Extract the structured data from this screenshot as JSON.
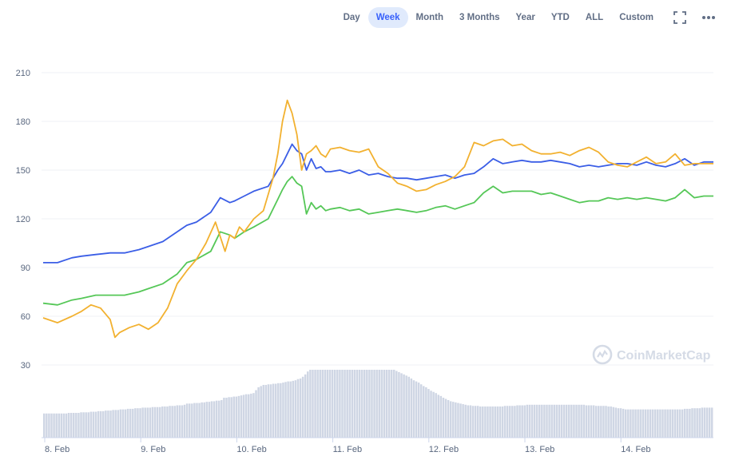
{
  "toolbar": {
    "ranges": [
      "Day",
      "Week",
      "Month",
      "3 Months",
      "Year",
      "YTD",
      "ALL",
      "Custom"
    ],
    "active": "Week",
    "icons": [
      "fullscreen-icon",
      "more-icon"
    ]
  },
  "watermark": "CoinMarketCap",
  "colors": {
    "blue": "#3b5ee6",
    "green": "#55c757",
    "orange": "#f2b130",
    "volume": "#cfd6e4",
    "grid": "#eff2f5",
    "axis_text": "#58667e",
    "accent": "#3861fb"
  },
  "chart_data": {
    "type": "line",
    "title": "",
    "xlabel": "",
    "ylabel": "",
    "x_ticks": [
      "8. Feb",
      "9. Feb",
      "10. Feb",
      "11. Feb",
      "12. Feb",
      "13. Feb",
      "14. Feb"
    ],
    "y_ticks": [
      30,
      60,
      90,
      120,
      150,
      180,
      210
    ],
    "ylim": [
      15,
      215
    ],
    "xlim": [
      0,
      7
    ],
    "grid": true,
    "legend": "none",
    "series": [
      {
        "color": "#3b5ee6",
        "x": [
          0,
          0.15,
          0.3,
          0.4,
          0.55,
          0.7,
          0.85,
          1.0,
          1.1,
          1.25,
          1.4,
          1.5,
          1.6,
          1.75,
          1.85,
          1.95,
          2.0,
          2.1,
          2.2,
          2.35,
          2.45,
          2.5,
          2.55,
          2.6,
          2.65,
          2.7,
          2.75,
          2.8,
          2.85,
          2.9,
          2.95,
          3.0,
          3.1,
          3.2,
          3.3,
          3.4,
          3.5,
          3.6,
          3.7,
          3.8,
          3.9,
          4.0,
          4.1,
          4.2,
          4.3,
          4.4,
          4.5,
          4.6,
          4.7,
          4.8,
          4.9,
          5.0,
          5.1,
          5.2,
          5.3,
          5.4,
          5.5,
          5.6,
          5.7,
          5.8,
          5.9,
          6.0,
          6.1,
          6.2,
          6.3,
          6.4,
          6.5,
          6.6,
          6.7,
          6.8,
          6.9,
          7.0
        ],
        "y": [
          93,
          93,
          96,
          97,
          98,
          99,
          99,
          101,
          103,
          106,
          112,
          116,
          118,
          124,
          133,
          130,
          131,
          134,
          137,
          140,
          150,
          154,
          160,
          166,
          162,
          160,
          150,
          157,
          151,
          152,
          149,
          149,
          150,
          148,
          150,
          147,
          148,
          146,
          145,
          145,
          144,
          145,
          146,
          147,
          145,
          147,
          148,
          152,
          157,
          154,
          155,
          156,
          155,
          155,
          156,
          155,
          154,
          152,
          153,
          152,
          153,
          154,
          154,
          153,
          155,
          153,
          152,
          154,
          157,
          153,
          155,
          155
        ]
      },
      {
        "color": "#55c757",
        "x": [
          0,
          0.15,
          0.3,
          0.4,
          0.55,
          0.7,
          0.85,
          1.0,
          1.1,
          1.25,
          1.4,
          1.5,
          1.6,
          1.75,
          1.85,
          1.95,
          2.0,
          2.1,
          2.2,
          2.35,
          2.45,
          2.5,
          2.55,
          2.6,
          2.65,
          2.7,
          2.75,
          2.8,
          2.85,
          2.9,
          2.95,
          3.0,
          3.1,
          3.2,
          3.3,
          3.4,
          3.5,
          3.6,
          3.7,
          3.8,
          3.9,
          4.0,
          4.1,
          4.2,
          4.3,
          4.4,
          4.5,
          4.6,
          4.7,
          4.8,
          4.9,
          5.0,
          5.1,
          5.2,
          5.3,
          5.4,
          5.5,
          5.6,
          5.7,
          5.8,
          5.9,
          6.0,
          6.1,
          6.2,
          6.3,
          6.4,
          6.5,
          6.6,
          6.7,
          6.8,
          6.9,
          7.0
        ],
        "y": [
          68,
          67,
          70,
          71,
          73,
          73,
          73,
          75,
          77,
          80,
          86,
          93,
          95,
          100,
          112,
          110,
          108,
          112,
          115,
          120,
          132,
          138,
          143,
          146,
          142,
          140,
          123,
          130,
          126,
          128,
          125,
          126,
          127,
          125,
          126,
          123,
          124,
          125,
          126,
          125,
          124,
          125,
          127,
          128,
          126,
          128,
          130,
          136,
          140,
          136,
          137,
          137,
          137,
          135,
          136,
          134,
          132,
          130,
          131,
          131,
          133,
          132,
          133,
          132,
          133,
          132,
          131,
          133,
          138,
          133,
          134,
          134
        ]
      },
      {
        "color": "#f2b130",
        "x": [
          0,
          0.15,
          0.3,
          0.4,
          0.5,
          0.6,
          0.7,
          0.75,
          0.8,
          0.9,
          1.0,
          1.1,
          1.2,
          1.3,
          1.4,
          1.5,
          1.6,
          1.7,
          1.8,
          1.9,
          1.95,
          2.0,
          2.05,
          2.1,
          2.2,
          2.3,
          2.4,
          2.45,
          2.5,
          2.55,
          2.6,
          2.65,
          2.7,
          2.75,
          2.8,
          2.85,
          2.9,
          2.95,
          3.0,
          3.1,
          3.2,
          3.3,
          3.4,
          3.5,
          3.6,
          3.7,
          3.8,
          3.9,
          4.0,
          4.1,
          4.2,
          4.3,
          4.4,
          4.5,
          4.6,
          4.7,
          4.8,
          4.9,
          5.0,
          5.1,
          5.2,
          5.3,
          5.4,
          5.5,
          5.6,
          5.7,
          5.8,
          5.9,
          6.0,
          6.1,
          6.2,
          6.3,
          6.4,
          6.5,
          6.6,
          6.7,
          6.8,
          6.9,
          7.0
        ],
        "y": [
          59,
          56,
          60,
          63,
          67,
          65,
          58,
          47,
          50,
          53,
          55,
          52,
          56,
          65,
          80,
          88,
          95,
          105,
          118,
          100,
          110,
          108,
          115,
          112,
          120,
          125,
          145,
          160,
          180,
          193,
          185,
          172,
          150,
          160,
          162,
          165,
          160,
          158,
          163,
          164,
          162,
          161,
          163,
          152,
          148,
          142,
          140,
          137,
          138,
          141,
          143,
          146,
          152,
          167,
          165,
          168,
          169,
          165,
          166,
          162,
          160,
          160,
          161,
          159,
          162,
          164,
          161,
          155,
          153,
          152,
          155,
          158,
          154,
          155,
          160,
          153,
          154,
          154,
          154
        ]
      }
    ],
    "volume": {
      "x_step": 0.028,
      "values": [
        0.25,
        0.25,
        0.25,
        0.25,
        0.25,
        0.25,
        0.25,
        0.25,
        0.25,
        0.25,
        0.26,
        0.26,
        0.26,
        0.26,
        0.26,
        0.27,
        0.27,
        0.27,
        0.27,
        0.28,
        0.28,
        0.28,
        0.29,
        0.29,
        0.29,
        0.3,
        0.3,
        0.3,
        0.31,
        0.31,
        0.31,
        0.32,
        0.32,
        0.32,
        0.33,
        0.33,
        0.33,
        0.34,
        0.34,
        0.34,
        0.35,
        0.35,
        0.35,
        0.35,
        0.36,
        0.36,
        0.36,
        0.36,
        0.37,
        0.37,
        0.37,
        0.38,
        0.38,
        0.38,
        0.39,
        0.39,
        0.39,
        0.4,
        0.42,
        0.42,
        0.42,
        0.43,
        0.43,
        0.43,
        0.44,
        0.44,
        0.45,
        0.45,
        0.46,
        0.46,
        0.47,
        0.47,
        0.48,
        0.52,
        0.52,
        0.53,
        0.53,
        0.54,
        0.54,
        0.55,
        0.56,
        0.57,
        0.58,
        0.58,
        0.59,
        0.6,
        0.65,
        0.7,
        0.72,
        0.74,
        0.74,
        0.75,
        0.75,
        0.76,
        0.76,
        0.77,
        0.77,
        0.78,
        0.79,
        0.8,
        0.8,
        0.81,
        0.82,
        0.84,
        0.85,
        0.88,
        0.92,
        0.97,
        1.0,
        1.0,
        1.0,
        1.0,
        1.0,
        1.0,
        1.0,
        1.0,
        1.0,
        1.0,
        1.0,
        1.0,
        1.0,
        1.0,
        1.0,
        1.0,
        1.0,
        1.0,
        1.0,
        1.0,
        1.0,
        1.0,
        1.0,
        1.0,
        1.0,
        1.0,
        1.0,
        1.0,
        1.0,
        1.0,
        1.0,
        1.0,
        1.0,
        1.0,
        1.0,
        0.98,
        0.96,
        0.94,
        0.92,
        0.9,
        0.88,
        0.85,
        0.82,
        0.8,
        0.78,
        0.75,
        0.72,
        0.7,
        0.67,
        0.64,
        0.62,
        0.6,
        0.57,
        0.55,
        0.52,
        0.5,
        0.48,
        0.46,
        0.45,
        0.44,
        0.43,
        0.42,
        0.41,
        0.4,
        0.39,
        0.39,
        0.38,
        0.38,
        0.38,
        0.37,
        0.37,
        0.37,
        0.37,
        0.37,
        0.37,
        0.37,
        0.37,
        0.37,
        0.37,
        0.38,
        0.38,
        0.38,
        0.38,
        0.38,
        0.39,
        0.39,
        0.39,
        0.39,
        0.4,
        0.4,
        0.4,
        0.4,
        0.4,
        0.4,
        0.4,
        0.4,
        0.4,
        0.4,
        0.4,
        0.4,
        0.4,
        0.4,
        0.4,
        0.4,
        0.4,
        0.4,
        0.4,
        0.4,
        0.4,
        0.4,
        0.4,
        0.4,
        0.39,
        0.39,
        0.39,
        0.39,
        0.38,
        0.38,
        0.38,
        0.38,
        0.38,
        0.37,
        0.37,
        0.36,
        0.35,
        0.34,
        0.34,
        0.33,
        0.32,
        0.32,
        0.32,
        0.32,
        0.32,
        0.32,
        0.32,
        0.32,
        0.32,
        0.32,
        0.32,
        0.32,
        0.32,
        0.32,
        0.32,
        0.32,
        0.32,
        0.32,
        0.32,
        0.32,
        0.32,
        0.32,
        0.32,
        0.32,
        0.33,
        0.33,
        0.33,
        0.34,
        0.34,
        0.34,
        0.34,
        0.35,
        0.35,
        0.35,
        0.35,
        0.35
      ]
    }
  }
}
